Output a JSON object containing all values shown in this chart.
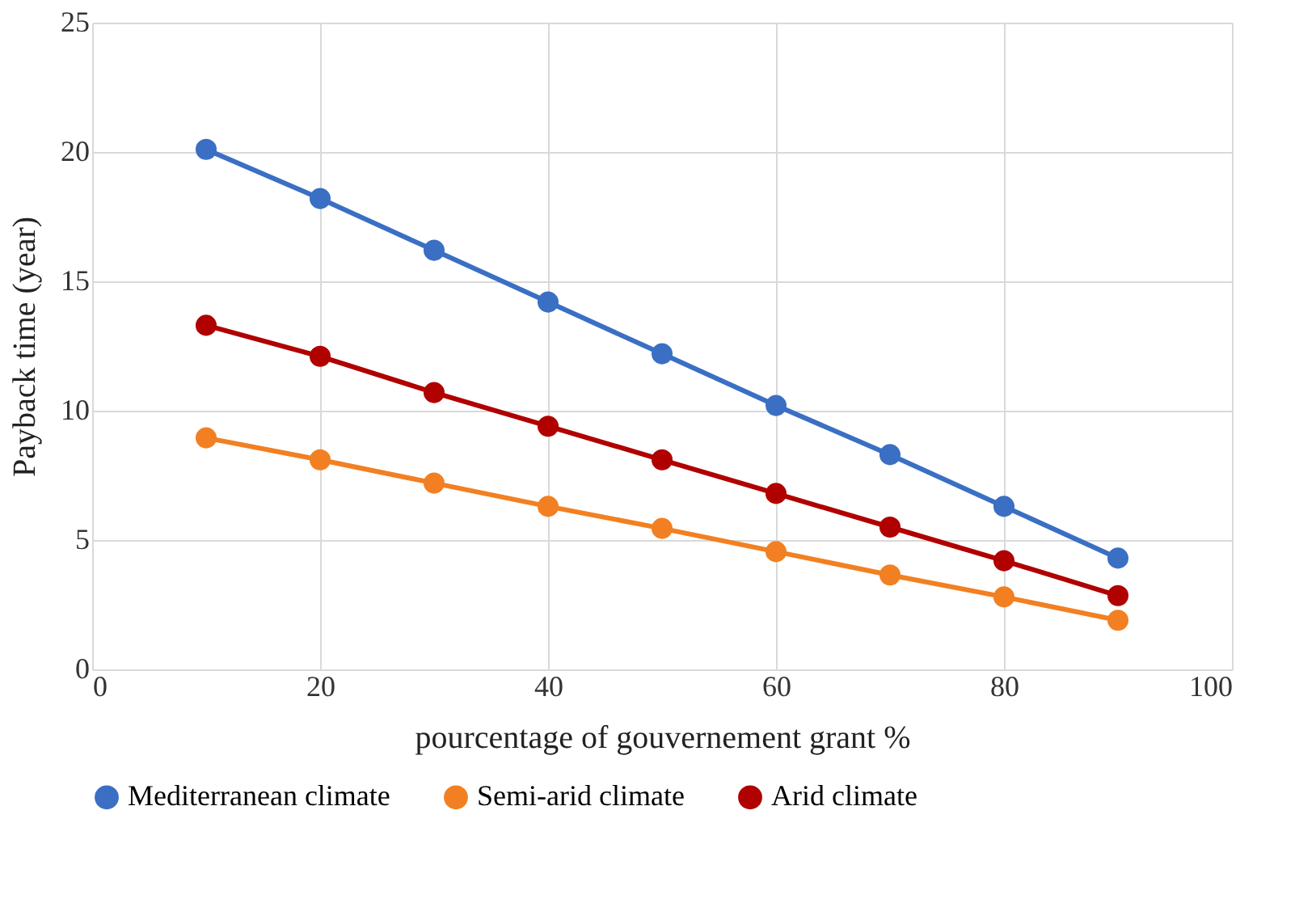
{
  "chart_data": {
    "type": "line",
    "xlabel": "pourcentage of gouvernement grant %",
    "ylabel": "Payback time (year)",
    "x": [
      10,
      20,
      30,
      40,
      50,
      60,
      70,
      80,
      90
    ],
    "series": [
      {
        "name": "Mediterranean climate",
        "color": "#3a6fc4",
        "values": [
          20.1,
          18.2,
          16.2,
          14.2,
          12.2,
          10.2,
          8.3,
          6.3,
          4.3
        ]
      },
      {
        "name": "Semi-arid climate",
        "color": "#f28022",
        "values": [
          8.95,
          8.1,
          7.2,
          6.3,
          5.45,
          4.55,
          3.65,
          2.8,
          1.9
        ]
      },
      {
        "name": "Arid climate",
        "color": "#b00000",
        "values": [
          13.3,
          12.1,
          10.7,
          9.4,
          8.1,
          6.8,
          5.5,
          4.2,
          2.85
        ]
      }
    ],
    "xlim": [
      0,
      100
    ],
    "xticks": [
      0,
      20,
      40,
      60,
      80,
      100
    ],
    "ylim": [
      0,
      25
    ],
    "yticks": [
      0,
      5,
      10,
      15,
      20,
      25
    ],
    "grid": true,
    "legend": "bottom",
    "marker": "circle",
    "line_style": "solid"
  }
}
